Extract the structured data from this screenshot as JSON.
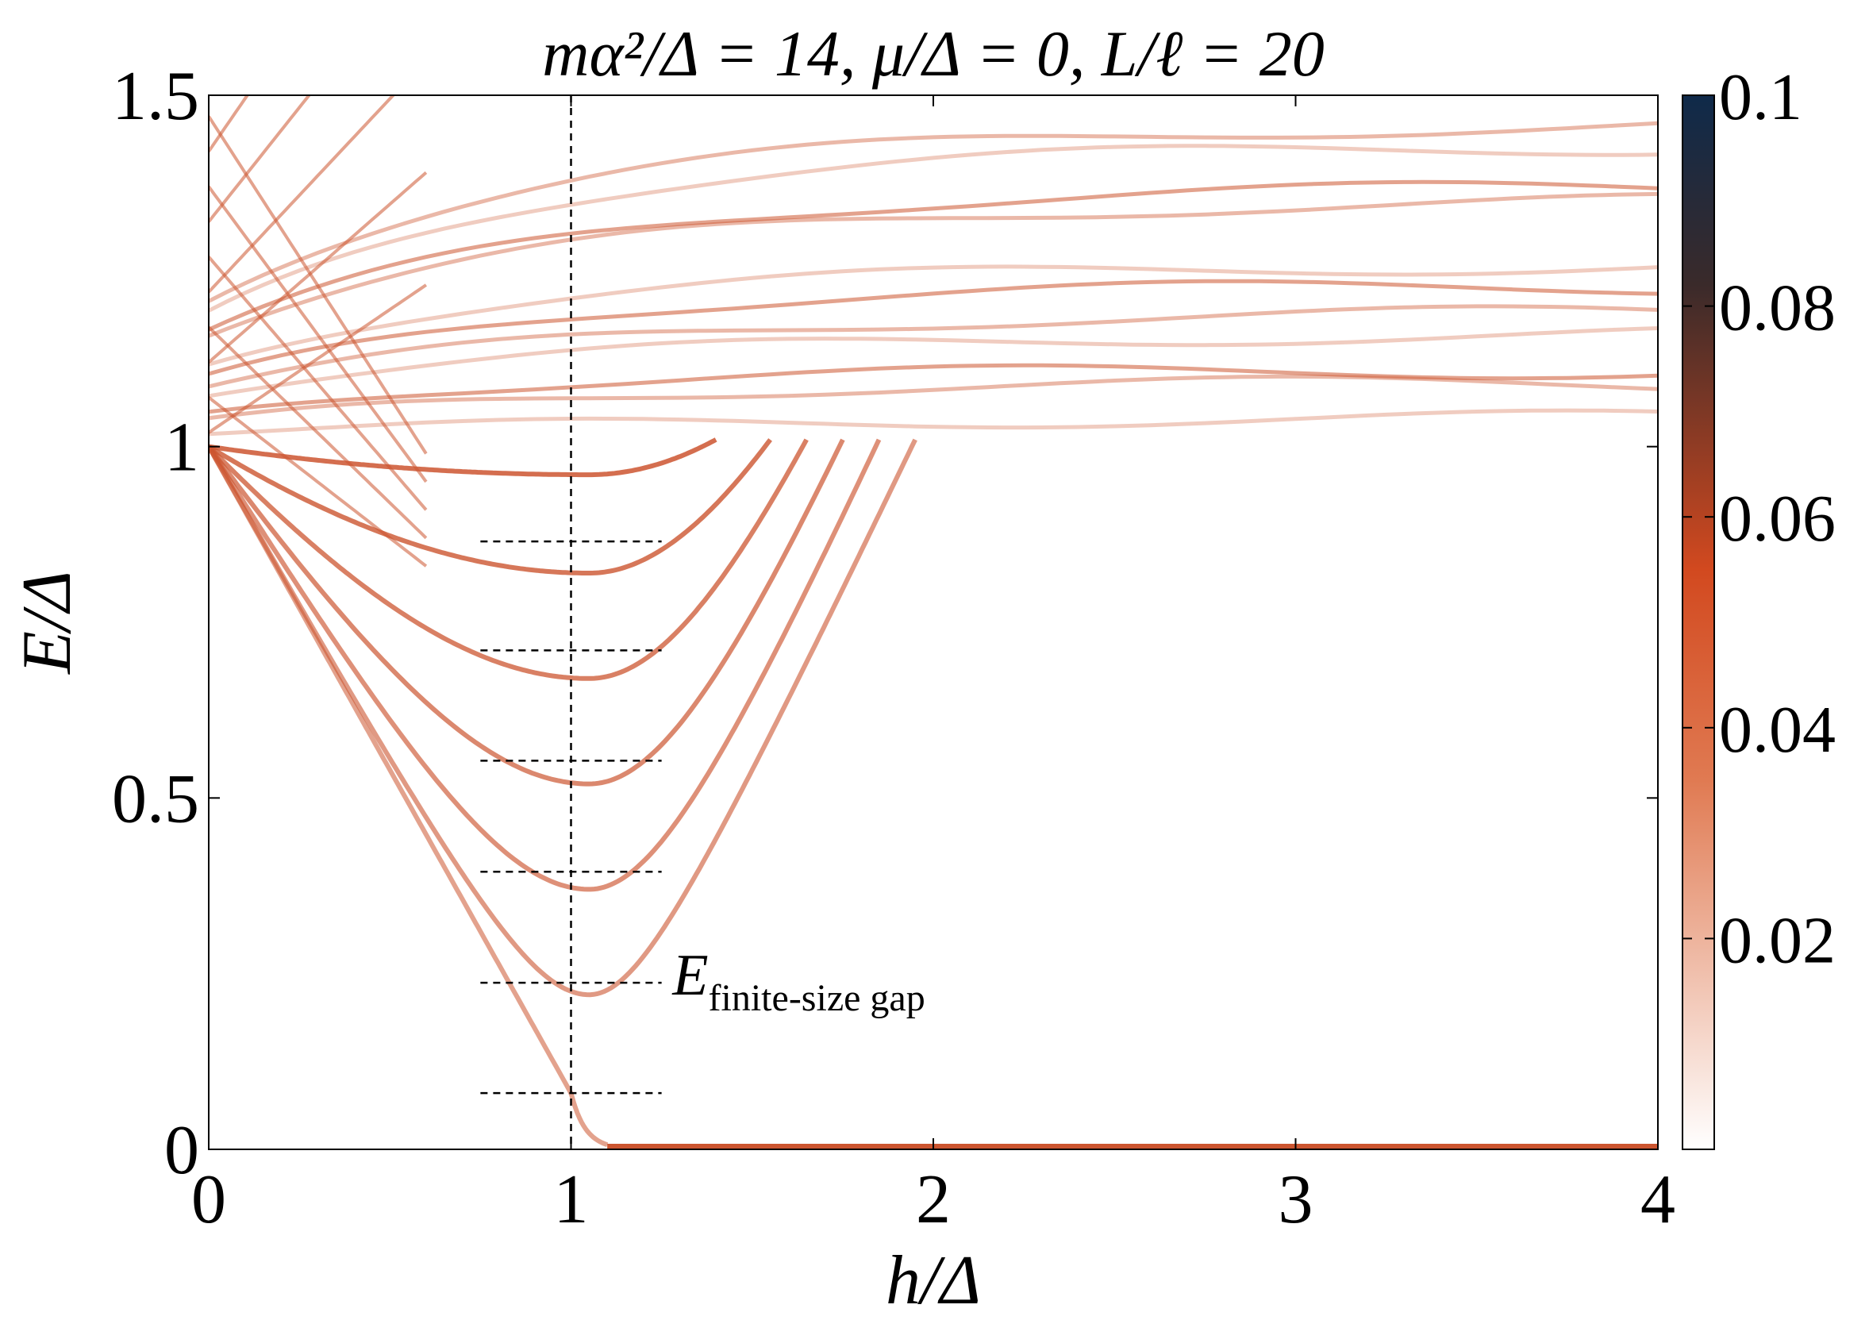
{
  "chart_data": {
    "type": "heatmap",
    "title": "mα²/Δ = 14, μ/Δ = 0, L/ℓ = 20",
    "xlabel": "h/Δ",
    "ylabel": "E/Δ",
    "xlim": [
      0,
      4
    ],
    "ylim": [
      0,
      1.5
    ],
    "x_ticks": [
      "0",
      "1",
      "2",
      "3",
      "4"
    ],
    "y_ticks": [
      "0",
      "0.5",
      "1",
      "1.5"
    ],
    "x_tick_values": [
      0,
      1,
      2,
      3,
      4
    ],
    "y_tick_values": [
      0,
      0.5,
      1,
      1.5
    ],
    "colorbar": {
      "range": [
        0,
        0.1
      ],
      "ticks": [
        "0.02",
        "0.04",
        "0.06",
        "0.08",
        "0.1"
      ],
      "tick_values": [
        0.02,
        0.04,
        0.06,
        0.08,
        0.1
      ],
      "colors": [
        "#ffffff",
        "#e07a52",
        "#d2491f",
        "#3a2a2a",
        "#0f2a4a"
      ]
    },
    "line_color": "#cc5530",
    "annotation": {
      "label": "finite-size gap",
      "base": "E",
      "x": 1.28,
      "y": 0.22
    },
    "reference_lines": {
      "vertical_x": 1.0,
      "horizontal_levels": [
        0.08,
        0.237,
        0.395,
        0.553,
        0.71,
        0.865
      ],
      "horizontal_x_range": [
        0.75,
        1.25
      ]
    },
    "subgap_branches": [
      {
        "min_h": 1.05,
        "min_E": 0.0,
        "gap_edge_h": 1.1
      },
      {
        "min_h": 1.05,
        "min_E": 0.22,
        "gap_edge_h": 1.95
      },
      {
        "min_h": 1.05,
        "min_E": 0.37,
        "gap_edge_h": 1.85
      },
      {
        "min_h": 1.05,
        "min_E": 0.52,
        "gap_edge_h": 1.75
      },
      {
        "min_h": 1.05,
        "min_E": 0.67,
        "gap_edge_h": 1.65
      },
      {
        "min_h": 1.05,
        "min_E": 0.82,
        "gap_edge_h": 1.55
      },
      {
        "min_h": 1.05,
        "min_E": 0.96,
        "gap_edge_h": 1.4
      }
    ],
    "continuum_levels": [
      1.04,
      1.09,
      1.11,
      1.16,
      1.19,
      1.23,
      1.26,
      1.35,
      1.37,
      1.43,
      1.46
    ]
  }
}
